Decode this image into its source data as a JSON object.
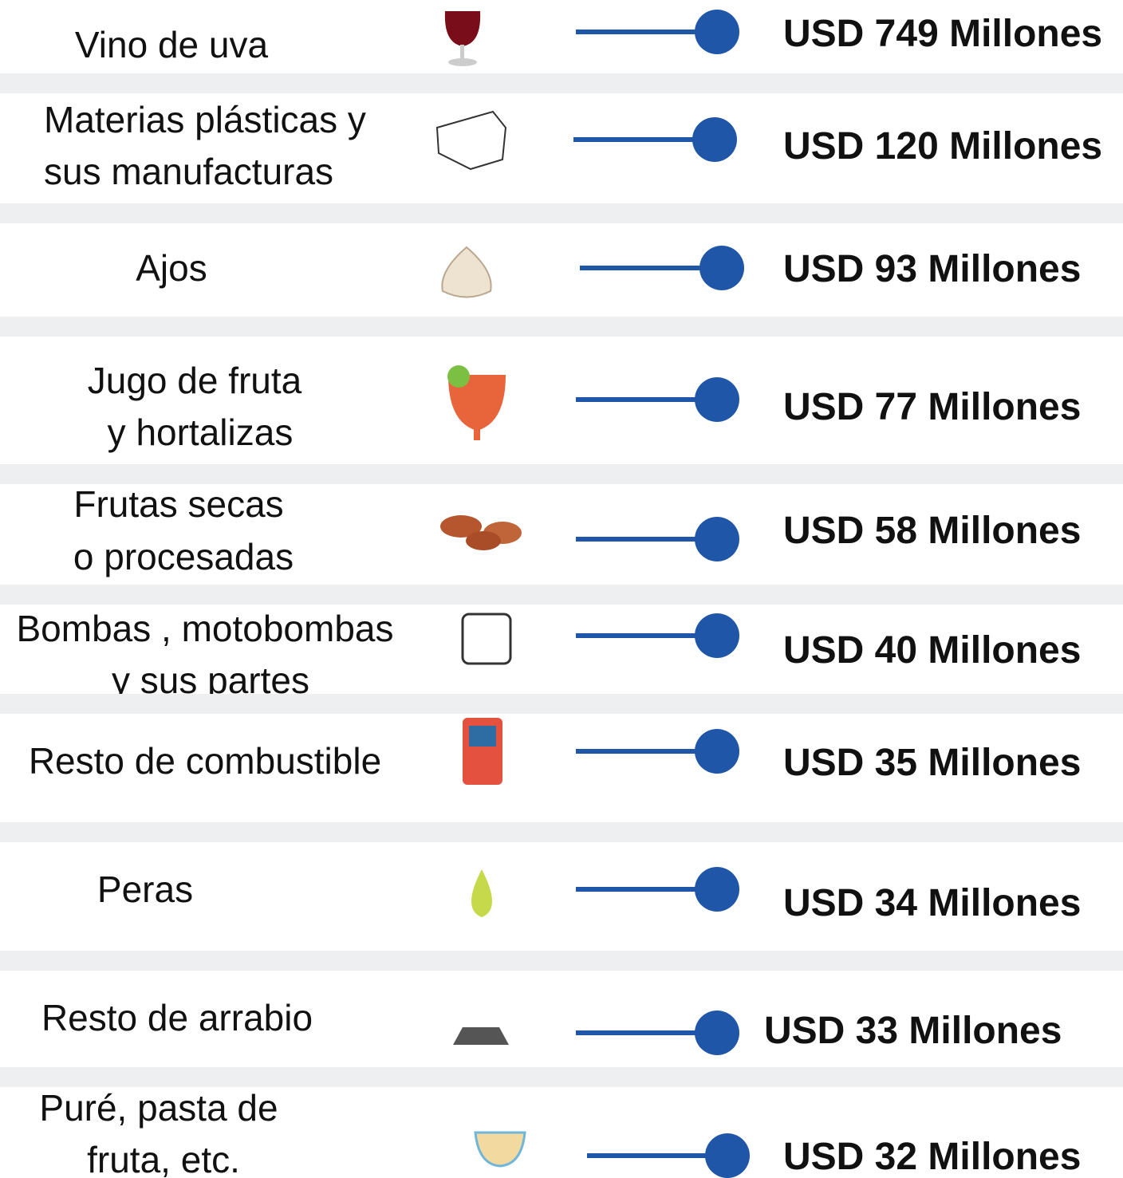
{
  "rows": [
    {
      "label": [
        "Vino de uva"
      ],
      "value": "USD 749 Millones"
    },
    {
      "label": [
        "Materias plásticas y",
        "sus manufacturas"
      ],
      "value": "USD 120 Millones"
    },
    {
      "label": [
        "Ajos"
      ],
      "value": "USD 93 Millones"
    },
    {
      "label": [
        "Jugo de fruta",
        " y hortalizas"
      ],
      "value": "USD 77 Millones"
    },
    {
      "label": [
        "Frutas secas",
        "o procesadas"
      ],
      "value": "USD 58 Millones"
    },
    {
      "label": [
        "Bombas , motobombas",
        "y sus partes"
      ],
      "value": "USD 40 Millones"
    },
    {
      "label": [
        "Resto de combustible"
      ],
      "value": "USD 35 Millones"
    },
    {
      "label": [
        "Peras"
      ],
      "value": "USD 34 Millones"
    },
    {
      "label": [
        "Resto de arrabio"
      ],
      "value": "USD 33 Millones"
    },
    {
      "label": [
        "Puré, pasta de",
        "fruta, etc."
      ],
      "value": "USD 32 Millones"
    }
  ]
}
